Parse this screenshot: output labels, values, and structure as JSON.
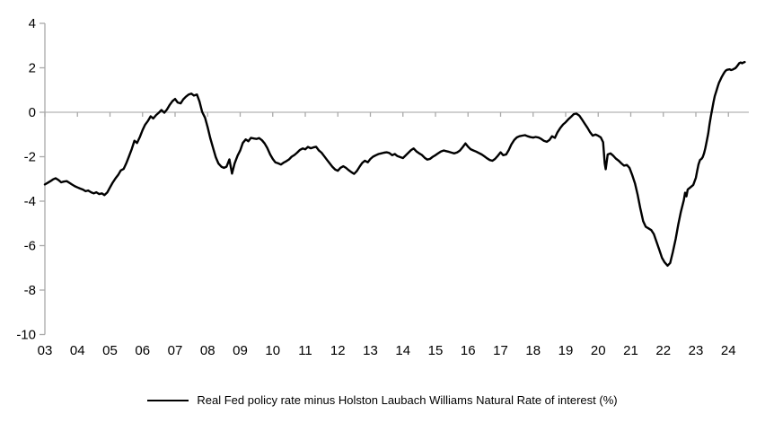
{
  "chart_data": {
    "type": "line",
    "title": "",
    "legend": "Real Fed policy rate minus Holston Laubach Williams Natural Rate of interest (%)",
    "legend_position": "bottom-center",
    "grid": "zero-line-only",
    "x_tick_labels": [
      "03",
      "04",
      "05",
      "06",
      "07",
      "08",
      "09",
      "10",
      "11",
      "12",
      "13",
      "14",
      "15",
      "16",
      "17",
      "18",
      "19",
      "20",
      "21",
      "22",
      "23",
      "24"
    ],
    "x_tick_start_year": 2003,
    "y_tick_values": [
      4,
      2,
      0,
      -2,
      -4,
      -6,
      -8,
      -10
    ],
    "ylim": [
      -10,
      4
    ],
    "xlim_years": [
      2003.0,
      2024.6
    ],
    "colors": {
      "series": "#000000",
      "axis": "#a9a9a9",
      "zero_line": "#b3b3b3",
      "text": "#000000"
    },
    "series": [
      {
        "name": "Real Fed policy rate minus Holston Laubach Williams Natural Rate of interest (%)",
        "points": [
          [
            2003.0,
            -3.25
          ],
          [
            2003.08,
            -3.18
          ],
          [
            2003.17,
            -3.1
          ],
          [
            2003.25,
            -3.02
          ],
          [
            2003.33,
            -2.97
          ],
          [
            2003.42,
            -3.05
          ],
          [
            2003.5,
            -3.15
          ],
          [
            2003.58,
            -3.12
          ],
          [
            2003.67,
            -3.1
          ],
          [
            2003.75,
            -3.17
          ],
          [
            2003.83,
            -3.25
          ],
          [
            2003.92,
            -3.33
          ],
          [
            2004.0,
            -3.38
          ],
          [
            2004.08,
            -3.43
          ],
          [
            2004.17,
            -3.48
          ],
          [
            2004.25,
            -3.55
          ],
          [
            2004.33,
            -3.52
          ],
          [
            2004.42,
            -3.6
          ],
          [
            2004.5,
            -3.65
          ],
          [
            2004.58,
            -3.6
          ],
          [
            2004.67,
            -3.68
          ],
          [
            2004.75,
            -3.65
          ],
          [
            2004.83,
            -3.73
          ],
          [
            2004.92,
            -3.6
          ],
          [
            2005.0,
            -3.38
          ],
          [
            2005.08,
            -3.17
          ],
          [
            2005.17,
            -2.97
          ],
          [
            2005.25,
            -2.82
          ],
          [
            2005.33,
            -2.62
          ],
          [
            2005.42,
            -2.55
          ],
          [
            2005.5,
            -2.3
          ],
          [
            2005.58,
            -2.0
          ],
          [
            2005.67,
            -1.65
          ],
          [
            2005.75,
            -1.28
          ],
          [
            2005.83,
            -1.38
          ],
          [
            2005.92,
            -1.1
          ],
          [
            2006.0,
            -0.8
          ],
          [
            2006.08,
            -0.56
          ],
          [
            2006.17,
            -0.38
          ],
          [
            2006.25,
            -0.18
          ],
          [
            2006.33,
            -0.28
          ],
          [
            2006.42,
            -0.12
          ],
          [
            2006.5,
            -0.02
          ],
          [
            2006.58,
            0.1
          ],
          [
            2006.67,
            -0.02
          ],
          [
            2006.75,
            0.12
          ],
          [
            2006.83,
            0.32
          ],
          [
            2006.92,
            0.5
          ],
          [
            2007.0,
            0.6
          ],
          [
            2007.08,
            0.44
          ],
          [
            2007.17,
            0.4
          ],
          [
            2007.25,
            0.58
          ],
          [
            2007.33,
            0.7
          ],
          [
            2007.42,
            0.8
          ],
          [
            2007.5,
            0.84
          ],
          [
            2007.58,
            0.75
          ],
          [
            2007.67,
            0.8
          ],
          [
            2007.75,
            0.48
          ],
          [
            2007.83,
            0.02
          ],
          [
            2007.92,
            -0.25
          ],
          [
            2008.0,
            -0.68
          ],
          [
            2008.08,
            -1.15
          ],
          [
            2008.17,
            -1.62
          ],
          [
            2008.25,
            -2.02
          ],
          [
            2008.33,
            -2.3
          ],
          [
            2008.42,
            -2.45
          ],
          [
            2008.5,
            -2.5
          ],
          [
            2008.58,
            -2.45
          ],
          [
            2008.67,
            -2.12
          ],
          [
            2008.75,
            -2.76
          ],
          [
            2008.83,
            -2.3
          ],
          [
            2008.92,
            -1.95
          ],
          [
            2009.0,
            -1.72
          ],
          [
            2009.08,
            -1.38
          ],
          [
            2009.17,
            -1.22
          ],
          [
            2009.25,
            -1.3
          ],
          [
            2009.33,
            -1.15
          ],
          [
            2009.42,
            -1.18
          ],
          [
            2009.5,
            -1.2
          ],
          [
            2009.58,
            -1.16
          ],
          [
            2009.67,
            -1.26
          ],
          [
            2009.75,
            -1.4
          ],
          [
            2009.83,
            -1.6
          ],
          [
            2009.92,
            -1.9
          ],
          [
            2010.0,
            -2.1
          ],
          [
            2010.08,
            -2.25
          ],
          [
            2010.17,
            -2.3
          ],
          [
            2010.25,
            -2.35
          ],
          [
            2010.33,
            -2.27
          ],
          [
            2010.42,
            -2.2
          ],
          [
            2010.5,
            -2.12
          ],
          [
            2010.58,
            -2.0
          ],
          [
            2010.67,
            -1.92
          ],
          [
            2010.75,
            -1.82
          ],
          [
            2010.83,
            -1.7
          ],
          [
            2010.92,
            -1.63
          ],
          [
            2011.0,
            -1.67
          ],
          [
            2011.08,
            -1.56
          ],
          [
            2011.17,
            -1.62
          ],
          [
            2011.25,
            -1.58
          ],
          [
            2011.33,
            -1.55
          ],
          [
            2011.42,
            -1.72
          ],
          [
            2011.5,
            -1.82
          ],
          [
            2011.58,
            -1.97
          ],
          [
            2011.67,
            -2.15
          ],
          [
            2011.75,
            -2.3
          ],
          [
            2011.83,
            -2.45
          ],
          [
            2011.92,
            -2.58
          ],
          [
            2012.0,
            -2.63
          ],
          [
            2012.08,
            -2.5
          ],
          [
            2012.17,
            -2.43
          ],
          [
            2012.25,
            -2.5
          ],
          [
            2012.33,
            -2.6
          ],
          [
            2012.42,
            -2.7
          ],
          [
            2012.5,
            -2.77
          ],
          [
            2012.58,
            -2.65
          ],
          [
            2012.67,
            -2.45
          ],
          [
            2012.75,
            -2.28
          ],
          [
            2012.83,
            -2.18
          ],
          [
            2012.92,
            -2.25
          ],
          [
            2013.0,
            -2.1
          ],
          [
            2013.08,
            -2.0
          ],
          [
            2013.17,
            -1.93
          ],
          [
            2013.25,
            -1.88
          ],
          [
            2013.33,
            -1.85
          ],
          [
            2013.42,
            -1.82
          ],
          [
            2013.5,
            -1.8
          ],
          [
            2013.58,
            -1.83
          ],
          [
            2013.67,
            -1.93
          ],
          [
            2013.75,
            -1.88
          ],
          [
            2013.83,
            -1.97
          ],
          [
            2013.92,
            -2.02
          ],
          [
            2014.0,
            -2.06
          ],
          [
            2014.08,
            -1.95
          ],
          [
            2014.17,
            -1.82
          ],
          [
            2014.25,
            -1.7
          ],
          [
            2014.33,
            -1.63
          ],
          [
            2014.42,
            -1.77
          ],
          [
            2014.5,
            -1.85
          ],
          [
            2014.58,
            -1.92
          ],
          [
            2014.67,
            -2.05
          ],
          [
            2014.75,
            -2.13
          ],
          [
            2014.83,
            -2.1
          ],
          [
            2014.92,
            -2.0
          ],
          [
            2015.0,
            -1.93
          ],
          [
            2015.08,
            -1.85
          ],
          [
            2015.17,
            -1.76
          ],
          [
            2015.25,
            -1.72
          ],
          [
            2015.33,
            -1.75
          ],
          [
            2015.42,
            -1.78
          ],
          [
            2015.5,
            -1.82
          ],
          [
            2015.58,
            -1.85
          ],
          [
            2015.67,
            -1.8
          ],
          [
            2015.75,
            -1.72
          ],
          [
            2015.83,
            -1.58
          ],
          [
            2015.92,
            -1.4
          ],
          [
            2016.0,
            -1.55
          ],
          [
            2016.08,
            -1.66
          ],
          [
            2016.17,
            -1.72
          ],
          [
            2016.25,
            -1.77
          ],
          [
            2016.33,
            -1.83
          ],
          [
            2016.42,
            -1.9
          ],
          [
            2016.5,
            -1.98
          ],
          [
            2016.58,
            -2.07
          ],
          [
            2016.67,
            -2.15
          ],
          [
            2016.75,
            -2.18
          ],
          [
            2016.83,
            -2.1
          ],
          [
            2016.92,
            -1.95
          ],
          [
            2017.0,
            -1.8
          ],
          [
            2017.08,
            -1.93
          ],
          [
            2017.17,
            -1.9
          ],
          [
            2017.25,
            -1.7
          ],
          [
            2017.33,
            -1.45
          ],
          [
            2017.42,
            -1.25
          ],
          [
            2017.5,
            -1.13
          ],
          [
            2017.58,
            -1.08
          ],
          [
            2017.67,
            -1.05
          ],
          [
            2017.75,
            -1.03
          ],
          [
            2017.83,
            -1.08
          ],
          [
            2017.92,
            -1.12
          ],
          [
            2018.0,
            -1.14
          ],
          [
            2018.08,
            -1.11
          ],
          [
            2018.17,
            -1.14
          ],
          [
            2018.25,
            -1.2
          ],
          [
            2018.33,
            -1.28
          ],
          [
            2018.42,
            -1.33
          ],
          [
            2018.5,
            -1.25
          ],
          [
            2018.58,
            -1.08
          ],
          [
            2018.67,
            -1.15
          ],
          [
            2018.75,
            -0.9
          ],
          [
            2018.83,
            -0.72
          ],
          [
            2018.92,
            -0.55
          ],
          [
            2019.0,
            -0.45
          ],
          [
            2019.08,
            -0.32
          ],
          [
            2019.17,
            -0.2
          ],
          [
            2019.25,
            -0.08
          ],
          [
            2019.33,
            -0.06
          ],
          [
            2019.42,
            -0.15
          ],
          [
            2019.5,
            -0.32
          ],
          [
            2019.58,
            -0.5
          ],
          [
            2019.67,
            -0.7
          ],
          [
            2019.75,
            -0.9
          ],
          [
            2019.83,
            -1.05
          ],
          [
            2019.92,
            -1.0
          ],
          [
            2020.0,
            -1.06
          ],
          [
            2020.08,
            -1.13
          ],
          [
            2020.15,
            -1.35
          ],
          [
            2020.2,
            -2.3
          ],
          [
            2020.23,
            -2.56
          ],
          [
            2020.29,
            -1.9
          ],
          [
            2020.38,
            -1.85
          ],
          [
            2020.46,
            -1.95
          ],
          [
            2020.54,
            -2.08
          ],
          [
            2020.63,
            -2.18
          ],
          [
            2020.71,
            -2.3
          ],
          [
            2020.79,
            -2.4
          ],
          [
            2020.88,
            -2.37
          ],
          [
            2020.96,
            -2.5
          ],
          [
            2021.04,
            -2.8
          ],
          [
            2021.13,
            -3.2
          ],
          [
            2021.21,
            -3.7
          ],
          [
            2021.29,
            -4.3
          ],
          [
            2021.38,
            -4.9
          ],
          [
            2021.46,
            -5.15
          ],
          [
            2021.54,
            -5.22
          ],
          [
            2021.63,
            -5.3
          ],
          [
            2021.71,
            -5.48
          ],
          [
            2021.79,
            -5.82
          ],
          [
            2021.88,
            -6.2
          ],
          [
            2021.96,
            -6.55
          ],
          [
            2022.04,
            -6.75
          ],
          [
            2022.13,
            -6.9
          ],
          [
            2022.21,
            -6.78
          ],
          [
            2022.29,
            -6.3
          ],
          [
            2022.38,
            -5.7
          ],
          [
            2022.46,
            -5.05
          ],
          [
            2022.54,
            -4.48
          ],
          [
            2022.63,
            -3.95
          ],
          [
            2022.67,
            -3.62
          ],
          [
            2022.71,
            -3.78
          ],
          [
            2022.75,
            -3.48
          ],
          [
            2022.83,
            -3.38
          ],
          [
            2022.92,
            -3.27
          ],
          [
            2023.0,
            -2.95
          ],
          [
            2023.04,
            -2.65
          ],
          [
            2023.08,
            -2.35
          ],
          [
            2023.13,
            -2.14
          ],
          [
            2023.17,
            -2.1
          ],
          [
            2023.21,
            -2.02
          ],
          [
            2023.25,
            -1.85
          ],
          [
            2023.29,
            -1.62
          ],
          [
            2023.33,
            -1.32
          ],
          [
            2023.38,
            -0.95
          ],
          [
            2023.42,
            -0.55
          ],
          [
            2023.46,
            -0.18
          ],
          [
            2023.5,
            0.12
          ],
          [
            2023.54,
            0.45
          ],
          [
            2023.58,
            0.72
          ],
          [
            2023.63,
            0.95
          ],
          [
            2023.67,
            1.15
          ],
          [
            2023.71,
            1.32
          ],
          [
            2023.75,
            1.45
          ],
          [
            2023.79,
            1.57
          ],
          [
            2023.83,
            1.68
          ],
          [
            2023.88,
            1.8
          ],
          [
            2023.92,
            1.88
          ],
          [
            2023.96,
            1.91
          ],
          [
            2024.04,
            1.93
          ],
          [
            2024.08,
            1.9
          ],
          [
            2024.13,
            1.92
          ],
          [
            2024.17,
            1.95
          ],
          [
            2024.21,
            1.98
          ],
          [
            2024.25,
            2.04
          ],
          [
            2024.29,
            2.12
          ],
          [
            2024.33,
            2.2
          ],
          [
            2024.38,
            2.24
          ],
          [
            2024.42,
            2.2
          ],
          [
            2024.46,
            2.24
          ],
          [
            2024.5,
            2.26
          ]
        ]
      }
    ]
  }
}
